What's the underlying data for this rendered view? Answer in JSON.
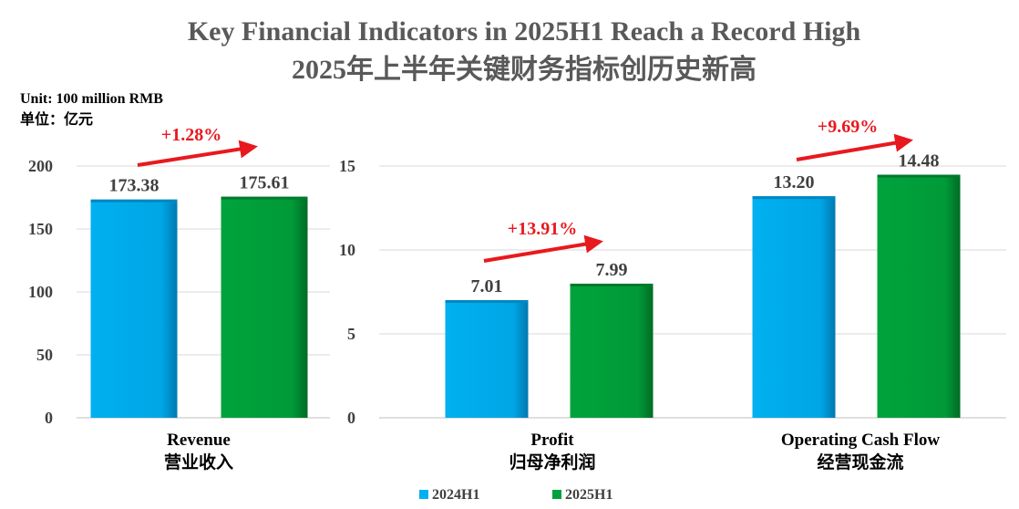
{
  "title": {
    "en": "Key Financial Indicators in 2025H1 Reach a Record High",
    "zh": "2025年上半年关键财务指标创历史新高"
  },
  "unit": {
    "en": "Unit: 100 million RMB",
    "zh": "单位：亿元"
  },
  "legend": [
    {
      "name": "2024H1",
      "color": "#00b0f0"
    },
    {
      "name": "2025H1",
      "color": "#00a03c"
    }
  ],
  "colors": {
    "series_2024": "#00b0f0",
    "series_2025": "#00a03c",
    "arrow": "#e8191e",
    "axis_text": "#404040",
    "title": "#595959"
  },
  "chart_data": [
    {
      "type": "bar",
      "categories": [
        {
          "en": "Revenue",
          "zh": "营业收入"
        }
      ],
      "series": [
        {
          "name": "2024H1",
          "values": [
            173.38
          ],
          "labels": [
            "173.38"
          ]
        },
        {
          "name": "2025H1",
          "values": [
            175.61
          ],
          "labels": [
            "175.61"
          ]
        }
      ],
      "growth": [
        "+1.28%"
      ],
      "ylim": [
        0,
        200
      ],
      "yticks": [
        0,
        50,
        100,
        150,
        200
      ],
      "ytick_labels": [
        "0",
        "50",
        "100",
        "150",
        "200"
      ],
      "grid": true
    },
    {
      "type": "bar",
      "categories": [
        {
          "en": "Profit",
          "zh": "归母净利润"
        },
        {
          "en": "Operating Cash Flow",
          "zh": "经营现金流"
        }
      ],
      "series": [
        {
          "name": "2024H1",
          "values": [
            7.01,
            13.2
          ],
          "labels": [
            "7.01",
            "13.20"
          ]
        },
        {
          "name": "2025H1",
          "values": [
            7.99,
            14.48
          ],
          "labels": [
            "7.99",
            "14.48"
          ]
        }
      ],
      "growth": [
        "+13.91%",
        "+9.69%"
      ],
      "ylim": [
        0,
        15
      ],
      "yticks": [
        0,
        5,
        10,
        15
      ],
      "ytick_labels": [
        "0",
        "5",
        "10",
        "15"
      ],
      "grid": true
    }
  ]
}
